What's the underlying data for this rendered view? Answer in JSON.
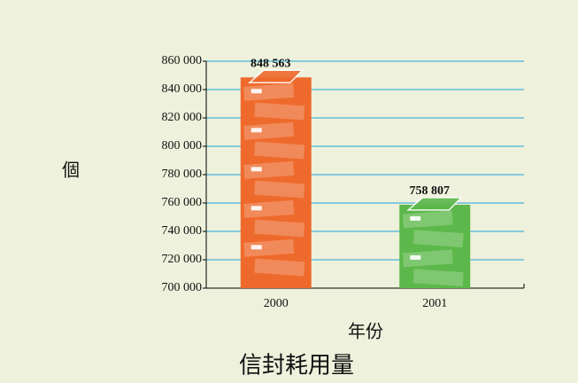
{
  "chart_data": {
    "type": "bar",
    "title": "信封耗用量",
    "x_label": "年份",
    "y_label": "個",
    "categories": [
      "2000",
      "2001"
    ],
    "values": [
      848563,
      758807
    ],
    "value_labels": [
      "848 563",
      "758 807"
    ],
    "colors": [
      "#ee6a2c",
      "#5cb84a"
    ],
    "ylim": [
      700000,
      860000
    ],
    "yticks": [
      {
        "value": 700000,
        "label": "700 000"
      },
      {
        "value": 720000,
        "label": "720 000"
      },
      {
        "value": 740000,
        "label": "740 000"
      },
      {
        "value": 760000,
        "label": "760 000"
      },
      {
        "value": 780000,
        "label": "780 000"
      },
      {
        "value": 800000,
        "label": "800 000"
      },
      {
        "value": 820000,
        "label": "820 000"
      },
      {
        "value": 840000,
        "label": "840 000"
      },
      {
        "value": 860000,
        "label": "860 000"
      }
    ],
    "grid": true
  }
}
